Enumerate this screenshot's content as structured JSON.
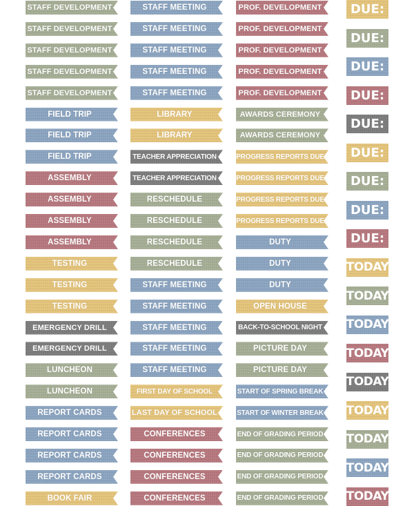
{
  "palette": {
    "green": "#a4ad94",
    "blue": "#8aa3bf",
    "rose": "#b5767c",
    "yellow": "#e3c37a",
    "gray": "#7b7b7b"
  },
  "columns": [
    {
      "stickers": [
        {
          "label": "STAFF DEVELOPMENT",
          "color": "green"
        },
        {
          "label": "STAFF DEVELOPMENT",
          "color": "green"
        },
        {
          "label": "STAFF DEVELOPMENT",
          "color": "green"
        },
        {
          "label": "STAFF DEVELOPMENT",
          "color": "green"
        },
        {
          "label": "STAFF DEVELOPMENT",
          "color": "green"
        },
        {
          "label": "FIELD TRIP",
          "color": "blue"
        },
        {
          "label": "FIELD TRIP",
          "color": "blue"
        },
        {
          "label": "FIELD TRIP",
          "color": "blue"
        },
        {
          "label": "ASSEMBLY",
          "color": "rose"
        },
        {
          "label": "ASSEMBLY",
          "color": "rose"
        },
        {
          "label": "ASSEMBLY",
          "color": "rose"
        },
        {
          "label": "ASSEMBLY",
          "color": "rose"
        },
        {
          "label": "TESTING",
          "color": "yellow"
        },
        {
          "label": "TESTING",
          "color": "yellow"
        },
        {
          "label": "TESTING",
          "color": "yellow"
        },
        {
          "label": "EMERGENCY DRILL",
          "color": "gray"
        },
        {
          "label": "EMERGENCY DRILL",
          "color": "gray"
        },
        {
          "label": "LUNCHEON",
          "color": "green"
        },
        {
          "label": "LUNCHEON",
          "color": "green"
        },
        {
          "label": "REPORT CARDS",
          "color": "blue"
        },
        {
          "label": "REPORT CARDS",
          "color": "blue"
        },
        {
          "label": "REPORT CARDS",
          "color": "blue"
        },
        {
          "label": "REPORT CARDS",
          "color": "blue"
        },
        {
          "label": "BOOK FAIR",
          "color": "yellow"
        }
      ]
    },
    {
      "stickers": [
        {
          "label": "STAFF MEETING",
          "color": "blue"
        },
        {
          "label": "STAFF MEETING",
          "color": "blue"
        },
        {
          "label": "STAFF MEETING",
          "color": "blue"
        },
        {
          "label": "STAFF MEETING",
          "color": "blue"
        },
        {
          "label": "STAFF MEETING",
          "color": "blue"
        },
        {
          "label": "LIBRARY",
          "color": "yellow"
        },
        {
          "label": "LIBRARY",
          "color": "yellow"
        },
        {
          "label": "TEACHER APPRECIATION",
          "color": "gray"
        },
        {
          "label": "TEACHER APPRECIATION",
          "color": "gray"
        },
        {
          "label": "RESCHEDULE",
          "color": "green"
        },
        {
          "label": "RESCHEDULE",
          "color": "green"
        },
        {
          "label": "RESCHEDULE",
          "color": "green"
        },
        {
          "label": "RESCHEDULE",
          "color": "green"
        },
        {
          "label": "STAFF MEETING",
          "color": "blue"
        },
        {
          "label": "STAFF MEETING",
          "color": "blue"
        },
        {
          "label": "STAFF MEETING",
          "color": "blue"
        },
        {
          "label": "STAFF MEETING",
          "color": "blue"
        },
        {
          "label": "STAFF MEETING",
          "color": "blue"
        },
        {
          "label": "FIRST DAY OF SCHOOL",
          "color": "yellow"
        },
        {
          "label": "LAST DAY OF SCHOOL",
          "color": "yellow"
        },
        {
          "label": "CONFERENCES",
          "color": "rose"
        },
        {
          "label": "CONFERENCES",
          "color": "rose"
        },
        {
          "label": "CONFERENCES",
          "color": "rose"
        },
        {
          "label": "CONFERENCES",
          "color": "rose"
        }
      ]
    },
    {
      "stickers": [
        {
          "label": "PROF. DEVELOPMENT",
          "color": "rose"
        },
        {
          "label": "PROF. DEVELOPMENT",
          "color": "rose"
        },
        {
          "label": "PROF. DEVELOPMENT",
          "color": "rose"
        },
        {
          "label": "PROF. DEVELOPMENT",
          "color": "rose"
        },
        {
          "label": "PROF. DEVELOPMENT",
          "color": "rose"
        },
        {
          "label": "AWARDS CEREMONY",
          "color": "green"
        },
        {
          "label": "AWARDS CEREMONY",
          "color": "green"
        },
        {
          "label": "PROGRESS REPORTS DUE",
          "color": "yellow"
        },
        {
          "label": "PROGRESS REPORTS DUE",
          "color": "yellow"
        },
        {
          "label": "PROGRESS REPORTS DUE",
          "color": "yellow"
        },
        {
          "label": "PROGRESS REPORTS DUE",
          "color": "yellow"
        },
        {
          "label": "DUTY",
          "color": "blue"
        },
        {
          "label": "DUTY",
          "color": "blue"
        },
        {
          "label": "DUTY",
          "color": "blue"
        },
        {
          "label": "OPEN HOUSE",
          "color": "yellow"
        },
        {
          "label": "BACK-TO-SCHOOL NIGHT",
          "color": "gray"
        },
        {
          "label": "PICTURE DAY",
          "color": "green"
        },
        {
          "label": "PICTURE DAY",
          "color": "green"
        },
        {
          "label": "START OF SPRING BREAK",
          "color": "blue"
        },
        {
          "label": "START OF WINTER BREAK",
          "color": "blue"
        },
        {
          "label": "END OF GRADING PERIOD",
          "color": "green"
        },
        {
          "label": "END OF GRADING PERIOD",
          "color": "green"
        },
        {
          "label": "END OF GRADING PERIOD",
          "color": "green"
        },
        {
          "label": "END OF GRADING PERIOD",
          "color": "green"
        }
      ]
    }
  ],
  "boxes": [
    {
      "label": "DUE:",
      "color": "yellow"
    },
    {
      "label": "DUE:",
      "color": "green"
    },
    {
      "label": "DUE:",
      "color": "blue"
    },
    {
      "label": "DUE:",
      "color": "rose"
    },
    {
      "label": "DUE:",
      "color": "gray"
    },
    {
      "label": "DUE:",
      "color": "yellow"
    },
    {
      "label": "DUE:",
      "color": "green"
    },
    {
      "label": "DUE:",
      "color": "blue"
    },
    {
      "label": "DUE:",
      "color": "rose"
    },
    {
      "label": "TODAY",
      "color": "yellow"
    },
    {
      "label": "TODAY",
      "color": "green"
    },
    {
      "label": "TODAY",
      "color": "blue"
    },
    {
      "label": "TODAY",
      "color": "rose"
    },
    {
      "label": "TODAY",
      "color": "gray"
    },
    {
      "label": "TODAY",
      "color": "yellow"
    },
    {
      "label": "TODAY",
      "color": "green"
    },
    {
      "label": "TODAY",
      "color": "blue"
    },
    {
      "label": "TODAY",
      "color": "rose"
    }
  ]
}
